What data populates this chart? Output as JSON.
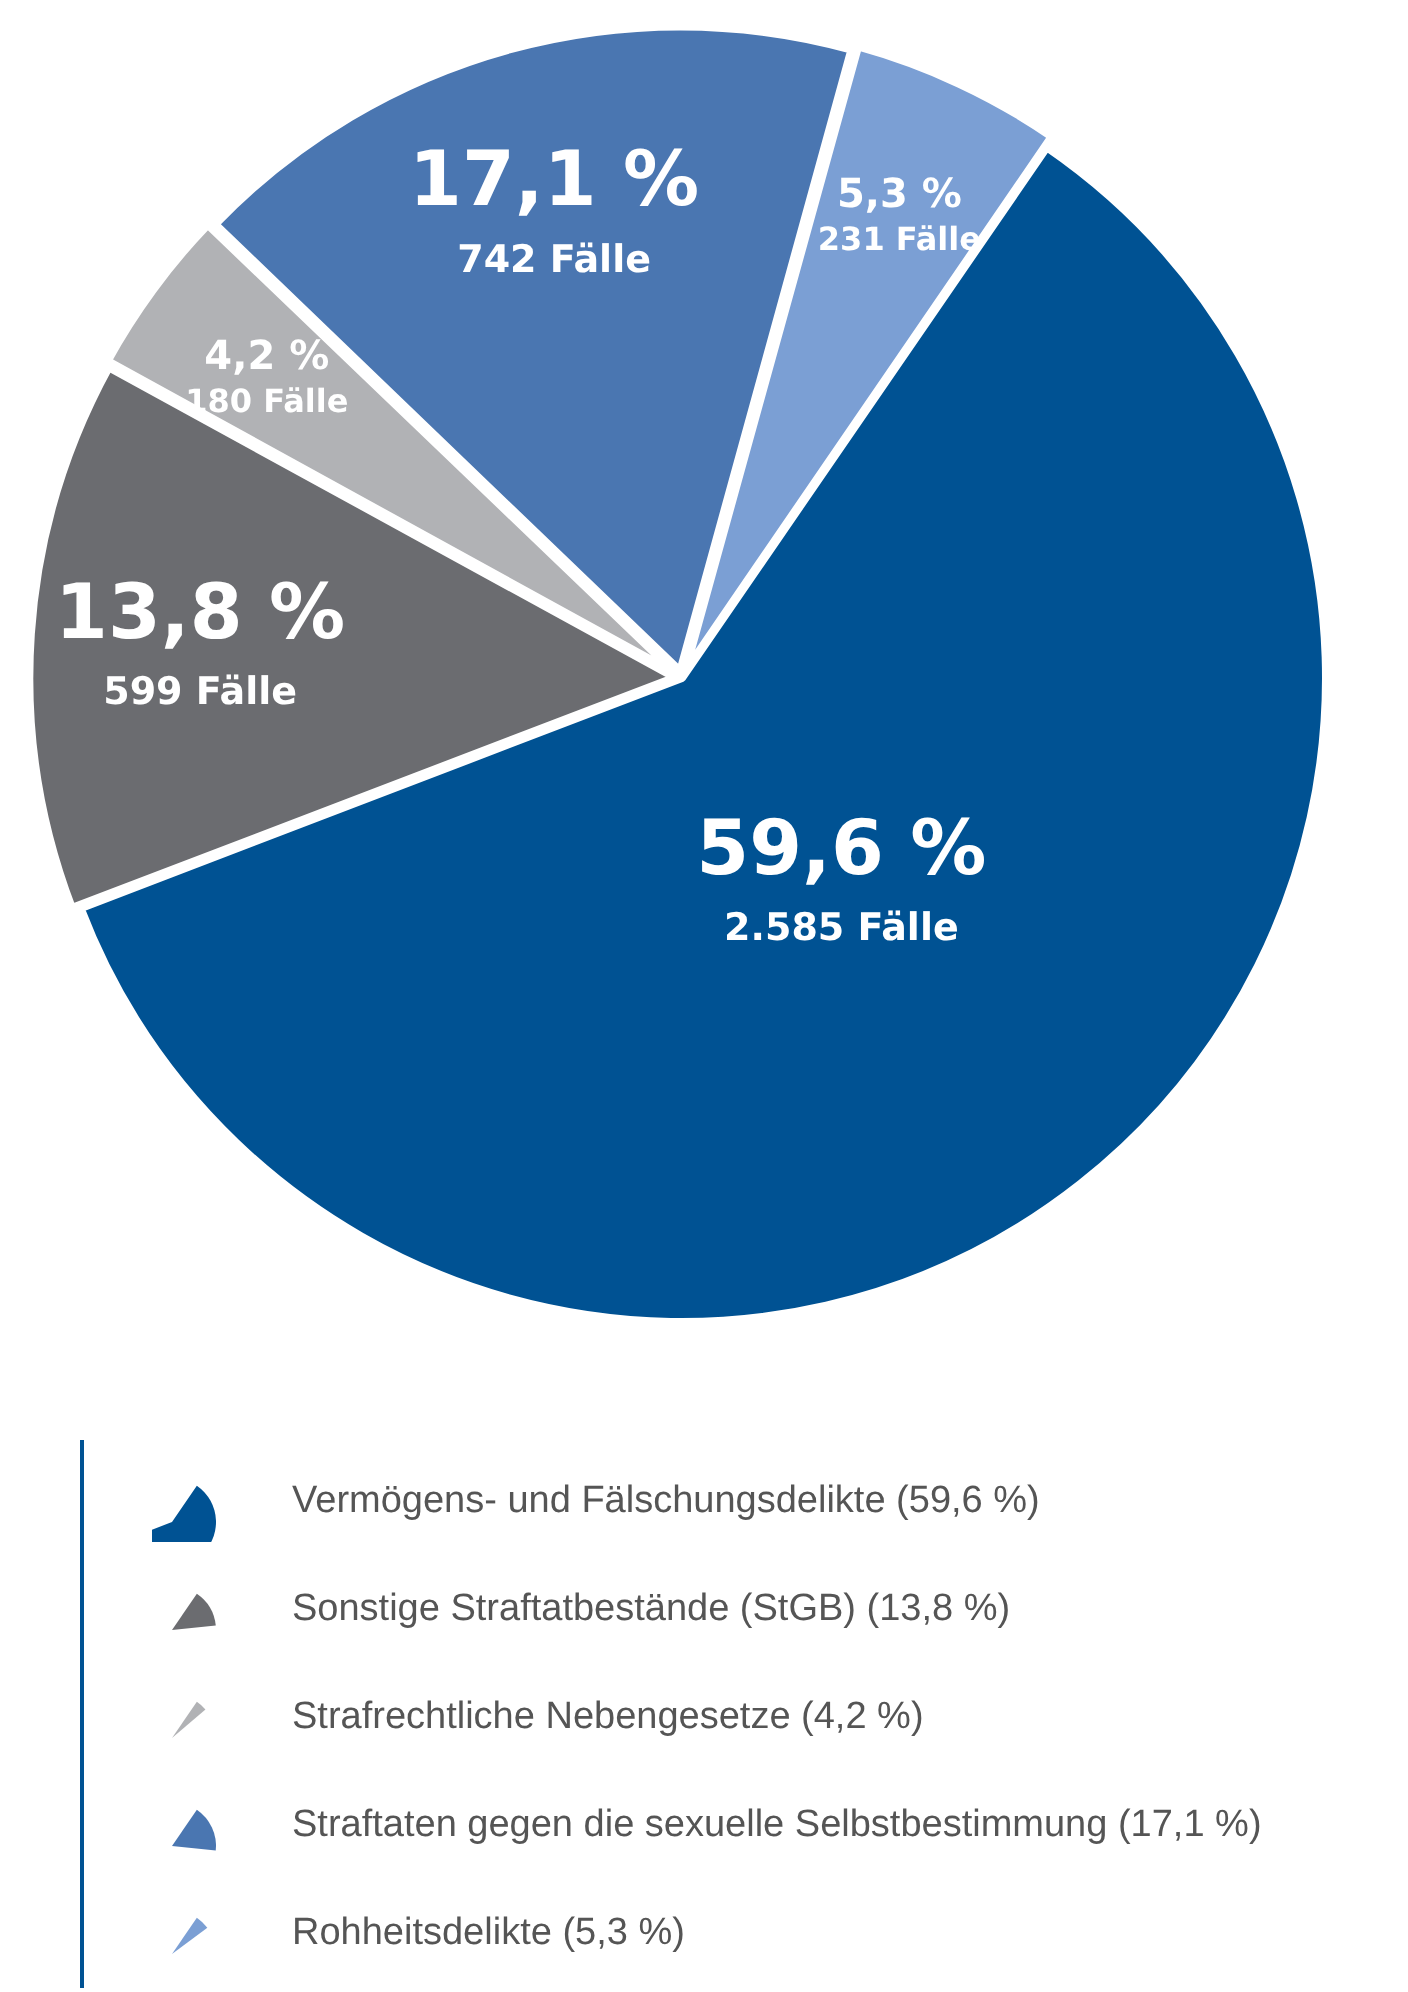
{
  "chart_data": {
    "type": "pie",
    "categories": [
      "Vermögens- und Fälschungsdelikte (59,6 %)",
      "Sonstige Straftatbestände (StGB) (13,8 %)",
      "Strafrechtliche Nebengesetze (4,2 %)",
      "Straftaten gegen die sexuelle Selbstbestimmung (17,1 %)",
      "Rohheitsdelikte  (5,3 %)"
    ],
    "values": [
      59.6,
      13.8,
      4.2,
      17.1,
      5.3
    ],
    "colors": [
      "#005293",
      "#6b6c70",
      "#b1b2b5",
      "#4a76b1",
      "#7b9fd4"
    ],
    "value_labels": [
      "59,6 %\n2.585 Fälle",
      "13,8 %\n599 Fälle",
      "4,2 %\n180 Fälle",
      "17,1 %\n742 Fälle",
      "5,3 %\n231 Fälle"
    ],
    "legend": "bottom"
  }
}
